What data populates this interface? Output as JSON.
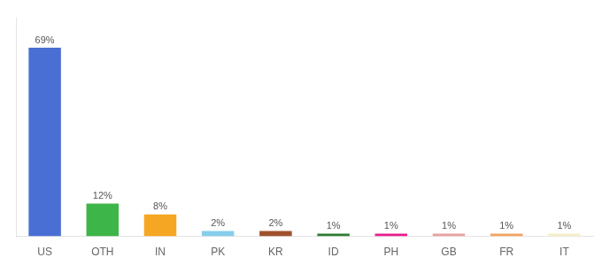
{
  "chart_data": {
    "type": "bar",
    "categories": [
      "US",
      "OTH",
      "IN",
      "PK",
      "KR",
      "ID",
      "PH",
      "GB",
      "FR",
      "IT"
    ],
    "values": [
      69,
      12,
      8,
      2,
      2,
      1,
      1,
      1,
      1,
      1
    ],
    "value_labels": [
      "69%",
      "12%",
      "8%",
      "2%",
      "2%",
      "1%",
      "1%",
      "1%",
      "1%",
      "1%"
    ],
    "colors": [
      "#4a6fd4",
      "#3db548",
      "#f5a623",
      "#87ceeb",
      "#a0522d",
      "#2e7d32",
      "#e91e8c",
      "#e8a0a0",
      "#f4a460",
      "#f5f0c8"
    ],
    "ylim": [
      0,
      80
    ],
    "data_labels": true,
    "tick_labels": "x",
    "grid": false
  }
}
